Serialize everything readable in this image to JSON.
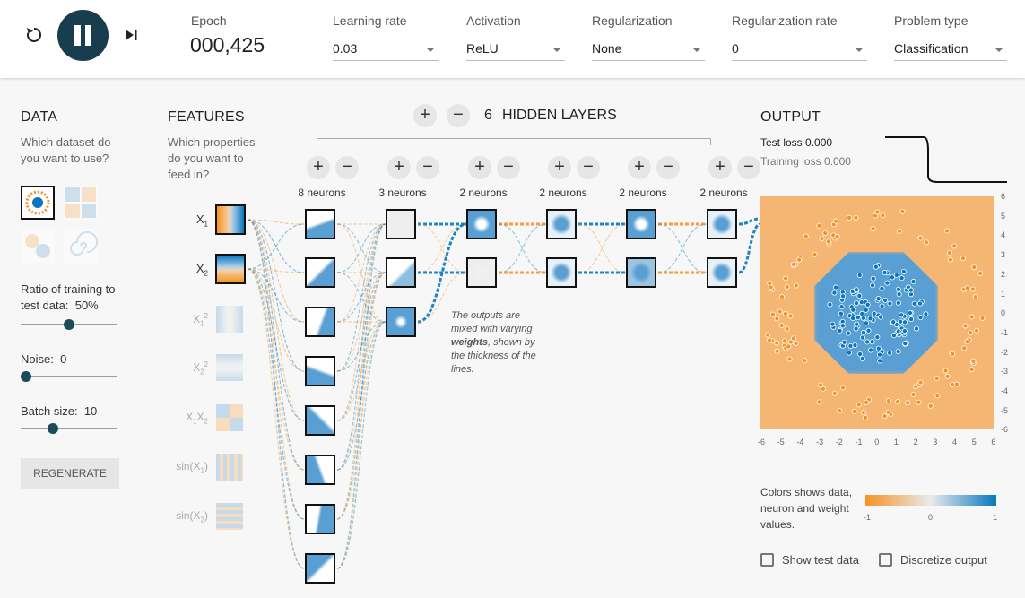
{
  "controls": {
    "epoch_label": "Epoch",
    "epoch_value": "000,425",
    "learning_rate": {
      "label": "Learning rate",
      "value": "0.03"
    },
    "activation": {
      "label": "Activation",
      "value": "ReLU"
    },
    "regularization": {
      "label": "Regularization",
      "value": "None"
    },
    "regularization_rate": {
      "label": "Regularization rate",
      "value": "0"
    },
    "problem_type": {
      "label": "Problem type",
      "value": "Classification"
    }
  },
  "data_panel": {
    "title": "DATA",
    "subtitle": "Which dataset do you want to use?",
    "ratio_label": "Ratio of training to test data:",
    "ratio_value": "50%",
    "ratio_fraction": 0.5,
    "noise_label": "Noise:",
    "noise_value": "0",
    "noise_fraction": 0,
    "batch_label": "Batch size:",
    "batch_value": "10",
    "batch_fraction": 0.31,
    "regenerate": "REGENERATE"
  },
  "features": {
    "title": "FEATURES",
    "subtitle": "Which properties do you want to feed in?",
    "items": [
      {
        "base": "X",
        "sub": "1",
        "sup": ""
      },
      {
        "base": "X",
        "sub": "2",
        "sup": ""
      },
      {
        "base": "X",
        "sub": "1",
        "sup": "2"
      },
      {
        "base": "X",
        "sub": "2",
        "sup": "2"
      },
      {
        "base": "X",
        "sub": "1",
        "base2": "X",
        "sub2": "2"
      },
      {
        "base": "sin(X",
        "sub": "1",
        "tail": ")"
      },
      {
        "base": "sin(X",
        "sub": "2",
        "tail": ")"
      }
    ]
  },
  "network": {
    "hidden_count": "6",
    "hidden_label": "HIDDEN LAYERS",
    "layers": [
      {
        "label": "8 neurons",
        "n": 8
      },
      {
        "label": "3 neurons",
        "n": 3
      },
      {
        "label": "2 neurons",
        "n": 2
      },
      {
        "label": "2 neurons",
        "n": 2
      },
      {
        "label": "2 neurons",
        "n": 2
      },
      {
        "label": "2 neurons",
        "n": 2
      }
    ],
    "annotation_pre": "The outputs are mixed with varying ",
    "annotation_bold": "weights",
    "annotation_post": ", shown by the thickness of the lines."
  },
  "output": {
    "title": "OUTPUT",
    "test_loss_label": "Test loss",
    "test_loss": "0.000",
    "training_loss_label": "Training loss",
    "training_loss": "0.000",
    "y_ticks": [
      "6",
      "5",
      "4",
      "3",
      "2",
      "1",
      "0",
      "-1",
      "-2",
      "-3",
      "-4",
      "-5",
      "-6"
    ],
    "x_ticks": [
      "-6",
      "-5",
      "-4",
      "-3",
      "-2",
      "-1",
      "0",
      "1",
      "2",
      "3",
      "4",
      "5",
      "6"
    ],
    "legend_text": "Colors shows data, neuron and weight values.",
    "legend_ticks": [
      "-1",
      "0",
      "1"
    ],
    "show_test": "Show test data",
    "discretize": "Discretize output",
    "colors": {
      "orange": "#f59322",
      "blue": "#0877bd",
      "light_orange": "#f5b36e",
      "light_blue": "#7fb2d8"
    }
  }
}
